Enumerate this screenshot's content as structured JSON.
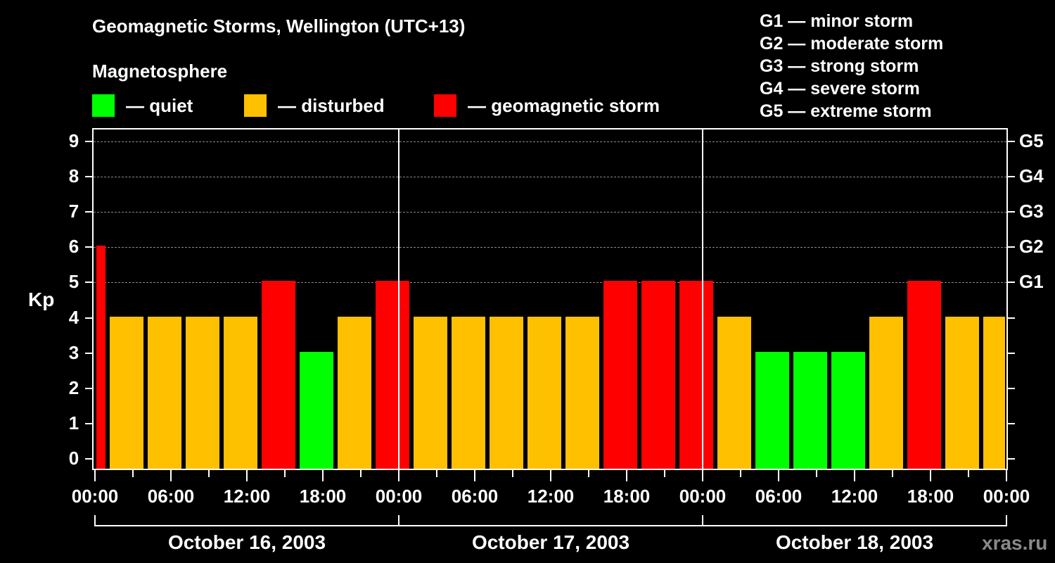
{
  "header": {
    "title": "Geomagnetic Storms, Wellington (UTC+13)",
    "subtitle": "Magnetosphere"
  },
  "legend": [
    {
      "label": "— quiet",
      "color": "#00ff00"
    },
    {
      "label": "— disturbed",
      "color": "#ffc000"
    },
    {
      "label": "— geomagnetic storm",
      "color": "#ff0000"
    }
  ],
  "g_scale_legend": [
    "G1 — minor storm",
    "G2 — moderate storm",
    "G3 — strong storm",
    "G4 — severe storm",
    "G5 — extreme storm"
  ],
  "axes": {
    "ylabel": "Kp",
    "yticks": [
      "0",
      "1",
      "2",
      "3",
      "4",
      "5",
      "6",
      "7",
      "8",
      "9"
    ],
    "right_ticks": [
      {
        "kp": 5,
        "label": "G1"
      },
      {
        "kp": 6,
        "label": "G2"
      },
      {
        "kp": 7,
        "label": "G3"
      },
      {
        "kp": 8,
        "label": "G4"
      },
      {
        "kp": 9,
        "label": "G5"
      }
    ],
    "xticks": [
      "00:00",
      "06:00",
      "12:00",
      "18:00",
      "00:00",
      "06:00",
      "12:00",
      "18:00",
      "00:00",
      "06:00",
      "12:00",
      "18:00",
      "00:00"
    ],
    "days": [
      "October 16, 2003",
      "October 17, 2003",
      "October 18, 2003"
    ]
  },
  "watermark": "xras.ru",
  "chart_data": {
    "type": "bar",
    "title": "Geomagnetic Storms, Wellington (UTC+13)",
    "subtitle": "Magnetosphere",
    "xlabel": "",
    "ylabel": "Kp",
    "ylim": [
      0,
      9
    ],
    "grid": "dashed horizontal at Kp 5-9",
    "legend_position": "top",
    "bin_hours": 3,
    "timezone": "UTC+13",
    "x_start": "October 16, 2003 00:00",
    "x_end": "October 19, 2003 00:00",
    "categories": [
      "Oct 16 00:00-01:00",
      "Oct 16 01:00",
      "Oct 16 04:00",
      "Oct 16 07:00",
      "Oct 16 10:00",
      "Oct 16 13:00",
      "Oct 16 16:00",
      "Oct 16 19:00",
      "Oct 16 22:00",
      "Oct 17 01:00",
      "Oct 17 04:00",
      "Oct 17 07:00",
      "Oct 17 10:00",
      "Oct 17 13:00",
      "Oct 17 16:00",
      "Oct 17 19:00",
      "Oct 17 22:00",
      "Oct 18 01:00",
      "Oct 18 04:00",
      "Oct 18 07:00",
      "Oct 18 10:00",
      "Oct 18 13:00",
      "Oct 18 16:00",
      "Oct 18 19:00",
      "Oct 18 22:00"
    ],
    "start_hours": [
      0,
      1,
      4,
      7,
      10,
      13,
      16,
      19,
      22,
      25,
      28,
      31,
      34,
      37,
      40,
      43,
      46,
      49,
      52,
      55,
      58,
      61,
      64,
      67,
      70
    ],
    "end_hours": [
      1,
      4,
      7,
      10,
      13,
      16,
      19,
      22,
      25,
      28,
      31,
      34,
      37,
      40,
      43,
      46,
      49,
      52,
      55,
      58,
      61,
      64,
      67,
      70,
      72
    ],
    "values": [
      6,
      4,
      4,
      4,
      4,
      5,
      3,
      4,
      5,
      4,
      4,
      4,
      4,
      4,
      5,
      5,
      5,
      4,
      3,
      3,
      3,
      4,
      5,
      4,
      4
    ],
    "color_rule": {
      "quiet": "Kp<=3",
      "disturbed": "Kp=4",
      "storm": "Kp>=5"
    },
    "colors": {
      "quiet": "#00ff00",
      "disturbed": "#ffc000",
      "storm": "#ff0000"
    }
  }
}
